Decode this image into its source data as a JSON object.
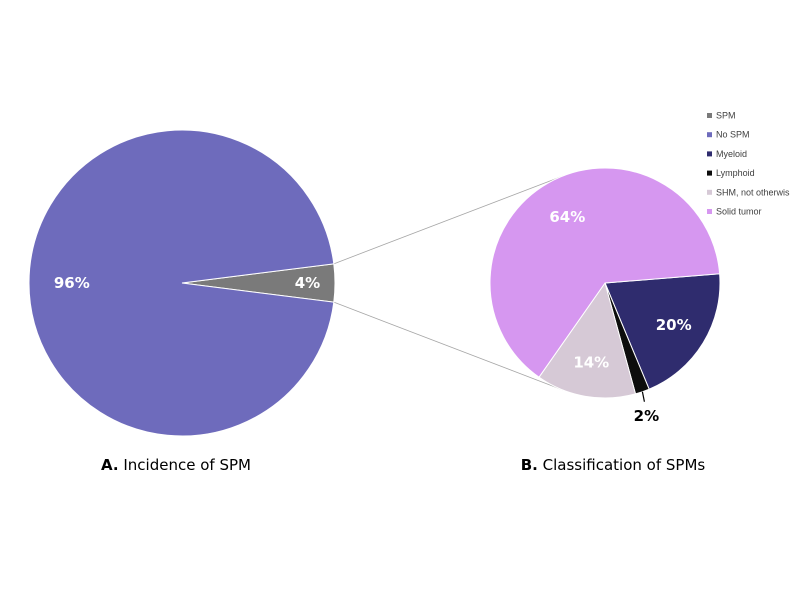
{
  "colors": {
    "SPM": "#7a7a7a",
    "No SPM": "#6e6bbc",
    "Myeloid": "#2f2c6e",
    "Lymphoid": "#0d0d0d",
    "SHM, not otherwis": "#d6c9d6",
    "Solid tumor": "#d697f0"
  },
  "legend": [
    "SPM",
    "No SPM",
    "Myeloid",
    "Lymphoid",
    "SHM, not otherwis",
    "Solid tumor"
  ],
  "chart_data": [
    {
      "type": "pie",
      "caption_letter": "A.",
      "caption_text": " Incidence of SPM",
      "categories": [
        "SPM",
        "No SPM"
      ],
      "values": [
        4,
        96
      ],
      "labels": [
        "4%",
        "96%"
      ]
    },
    {
      "type": "pie",
      "caption_letter": "B.",
      "caption_text": " Classification of SPMs",
      "categories": [
        "Myeloid",
        "Lymphoid",
        "SHM, not otherwis",
        "Solid tumor"
      ],
      "values": [
        20,
        2,
        14,
        64
      ],
      "labels": [
        "20%",
        "2%",
        "14%",
        "64%"
      ]
    }
  ]
}
